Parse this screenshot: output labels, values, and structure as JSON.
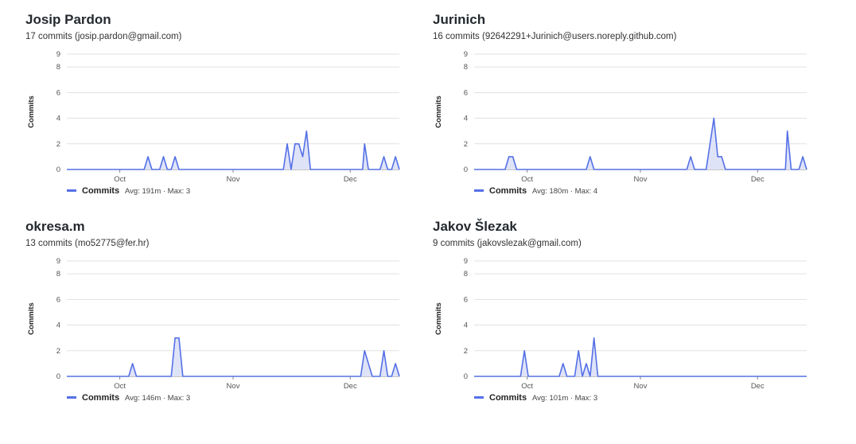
{
  "colors": {
    "line": "#5470e6",
    "fill": "#dfe3f7",
    "grid": "#e1e1e1",
    "axis": "#888888"
  },
  "chart_data": [
    {
      "type": "area",
      "title": "Josip Pardon",
      "subtitle": "17 commits (josip.pardon@gmail.com)",
      "ylabel": "Commits",
      "yticks": [
        0,
        2,
        4,
        6,
        8,
        9
      ],
      "ylim": [
        0,
        9
      ],
      "xlim": [
        0,
        86
      ],
      "xticks": [
        {
          "label": "Oct",
          "x": 13.7
        },
        {
          "label": "Nov",
          "x": 43
        },
        {
          "label": "Dec",
          "x": 73.3
        }
      ],
      "grid": true,
      "legend": {
        "label": "Commits",
        "stats": "Avg: 191m · Max: 3"
      },
      "series": [
        {
          "name": "Commits",
          "points": [
            [
              0,
              0
            ],
            [
              20,
              0
            ],
            [
              21,
              1
            ],
            [
              22,
              0
            ],
            [
              24,
              0
            ],
            [
              25,
              1
            ],
            [
              26,
              0
            ],
            [
              27,
              0
            ],
            [
              28,
              1
            ],
            [
              29,
              0
            ],
            [
              55,
              0
            ],
            [
              56,
              0
            ],
            [
              57,
              2
            ],
            [
              58,
              0
            ],
            [
              59,
              2
            ],
            [
              60,
              2
            ],
            [
              61,
              1
            ],
            [
              62,
              3
            ],
            [
              63,
              0
            ],
            [
              76,
              0
            ],
            [
              76.5,
              0
            ],
            [
              77,
              2
            ],
            [
              78,
              0
            ],
            [
              81,
              0
            ],
            [
              82,
              1
            ],
            [
              83,
              0
            ],
            [
              84,
              0
            ],
            [
              85,
              1
            ],
            [
              86,
              0
            ]
          ]
        }
      ]
    },
    {
      "type": "area",
      "title": "Jurinich",
      "subtitle": "16 commits (92642291+Jurinich@users.noreply.github.com)",
      "ylabel": "Commits",
      "yticks": [
        0,
        2,
        4,
        6,
        8,
        9
      ],
      "ylim": [
        0,
        9
      ],
      "xlim": [
        0,
        86
      ],
      "xticks": [
        {
          "label": "Oct",
          "x": 13.7
        },
        {
          "label": "Nov",
          "x": 43
        },
        {
          "label": "Dec",
          "x": 73.3
        }
      ],
      "grid": true,
      "legend": {
        "label": "Commits",
        "stats": "Avg: 180m · Max: 4"
      },
      "series": [
        {
          "name": "Commits",
          "points": [
            [
              0,
              0
            ],
            [
              8,
              0
            ],
            [
              9,
              1
            ],
            [
              10,
              1
            ],
            [
              11,
              0
            ],
            [
              29,
              0
            ],
            [
              30,
              1
            ],
            [
              31,
              0
            ],
            [
              55,
              0
            ],
            [
              56,
              1
            ],
            [
              57,
              0
            ],
            [
              60,
              0
            ],
            [
              62,
              4
            ],
            [
              63,
              1
            ],
            [
              64,
              1
            ],
            [
              65,
              0
            ],
            [
              80,
              0
            ],
            [
              80.5,
              0
            ],
            [
              81,
              3
            ],
            [
              82,
              0
            ],
            [
              84,
              0
            ],
            [
              85,
              1
            ],
            [
              86,
              0
            ]
          ]
        }
      ]
    },
    {
      "type": "area",
      "title": "okresa.m",
      "subtitle": "13 commits (mo52775@fer.hr)",
      "ylabel": "Commits",
      "yticks": [
        0,
        2,
        4,
        6,
        8,
        9
      ],
      "ylim": [
        0,
        9
      ],
      "xlim": [
        0,
        86
      ],
      "xticks": [
        {
          "label": "Oct",
          "x": 13.7
        },
        {
          "label": "Nov",
          "x": 43
        },
        {
          "label": "Dec",
          "x": 73.3
        }
      ],
      "grid": true,
      "legend": {
        "label": "Commits",
        "stats": "Avg: 146m · Max: 3"
      },
      "series": [
        {
          "name": "Commits",
          "points": [
            [
              0,
              0
            ],
            [
              16,
              0
            ],
            [
              17,
              1
            ],
            [
              18,
              0
            ],
            [
              27,
              0
            ],
            [
              28,
              3
            ],
            [
              29,
              3
            ],
            [
              30,
              0
            ],
            [
              76,
              0
            ],
            [
              77,
              2
            ],
            [
              78,
              1
            ],
            [
              79,
              0
            ],
            [
              81,
              0
            ],
            [
              82,
              2
            ],
            [
              83,
              0
            ],
            [
              84,
              0
            ],
            [
              85,
              1
            ],
            [
              86,
              0
            ]
          ]
        }
      ]
    },
    {
      "type": "area",
      "title": "Jakov Šlezak",
      "subtitle": "9 commits (jakovslezak@gmail.com)",
      "ylabel": "Commits",
      "yticks": [
        0,
        2,
        4,
        6,
        8,
        9
      ],
      "ylim": [
        0,
        9
      ],
      "xlim": [
        0,
        86
      ],
      "xticks": [
        {
          "label": "Oct",
          "x": 13.7
        },
        {
          "label": "Nov",
          "x": 43
        },
        {
          "label": "Dec",
          "x": 73.3
        }
      ],
      "grid": true,
      "legend": {
        "label": "Commits",
        "stats": "Avg: 101m · Max: 3"
      },
      "series": [
        {
          "name": "Commits",
          "points": [
            [
              0,
              0
            ],
            [
              12,
              0
            ],
            [
              13,
              2
            ],
            [
              14,
              0
            ],
            [
              22,
              0
            ],
            [
              23,
              1
            ],
            [
              24,
              0
            ],
            [
              26,
              0
            ],
            [
              27,
              2
            ],
            [
              28,
              0
            ],
            [
              29,
              1
            ],
            [
              30,
              0
            ],
            [
              31,
              3
            ],
            [
              32,
              0
            ],
            [
              86,
              0
            ]
          ]
        }
      ]
    }
  ]
}
